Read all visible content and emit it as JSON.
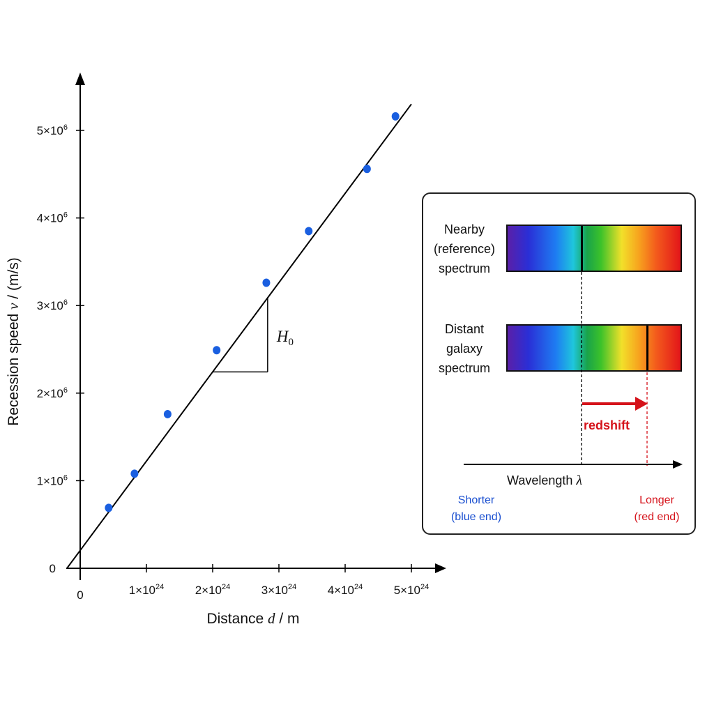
{
  "chart_data": {
    "type": "scatter",
    "title": "",
    "xlabel_prefix": "Distance ",
    "xlabel_var": "d",
    "xlabel_suffix": " / m",
    "ylabel_prefix": "Recession speed ",
    "ylabel_var": "v",
    "ylabel_suffix": " / (m/s)",
    "xlim": [
      -2e+23,
      5.5e+24
    ],
    "ylim": [
      -100000.0,
      5700000.0
    ],
    "x_ticks": [
      {
        "value": 0,
        "base": "0",
        "exp": ""
      },
      {
        "value": 1e+24,
        "base": "1×10",
        "exp": "24"
      },
      {
        "value": 2e+24,
        "base": "2×10",
        "exp": "24"
      },
      {
        "value": 3e+24,
        "base": "3×10",
        "exp": "24"
      },
      {
        "value": 4e+24,
        "base": "4×10",
        "exp": "24"
      },
      {
        "value": 5e+24,
        "base": "5×10",
        "exp": "24"
      }
    ],
    "y_ticks": [
      {
        "value": 0,
        "base": "0",
        "exp": ""
      },
      {
        "value": 1000000.0,
        "base": "1×10",
        "exp": "6"
      },
      {
        "value": 2000000.0,
        "base": "2×10",
        "exp": "6"
      },
      {
        "value": 3000000.0,
        "base": "3×10",
        "exp": "6"
      },
      {
        "value": 4000000.0,
        "base": "4×10",
        "exp": "6"
      },
      {
        "value": 5000000.0,
        "base": "5×10",
        "exp": "6"
      }
    ],
    "points": [
      {
        "x": 4.3e+23,
        "y": 690000.0
      },
      {
        "x": 8.2e+23,
        "y": 1080000.0
      },
      {
        "x": 1.32e+24,
        "y": 1760000.0
      },
      {
        "x": 2.06e+24,
        "y": 2490000.0
      },
      {
        "x": 2.81e+24,
        "y": 3260000.0
      },
      {
        "x": 3.45e+24,
        "y": 3850000.0
      },
      {
        "x": 4.33e+24,
        "y": 4560000.0
      },
      {
        "x": 4.76e+24,
        "y": 5160000.0
      }
    ],
    "fit_line": {
      "x0": -2e+23,
      "y0": 0.0,
      "x1": 5e+24,
      "y1": 5300000.0
    },
    "slope_triangle": {
      "x0": 2e+24,
      "x1": 2.83e+24,
      "label_base": "H",
      "label_sub": "0"
    },
    "point_color": "#1a5fe0"
  },
  "panel": {
    "nearby_label": [
      "Nearby",
      "(reference)",
      "spectrum"
    ],
    "distant_label": [
      "Distant",
      "galaxy",
      "spectrum"
    ],
    "redshift_label": "redshift",
    "axis_label_prefix": "Wavelength ",
    "axis_label_var": "λ",
    "shorter_label": [
      "Shorter",
      "(blue end)"
    ],
    "longer_label": [
      "Longer",
      "(red end)"
    ],
    "blue_color": "#1a4fd0",
    "red_color": "#d5121a"
  }
}
